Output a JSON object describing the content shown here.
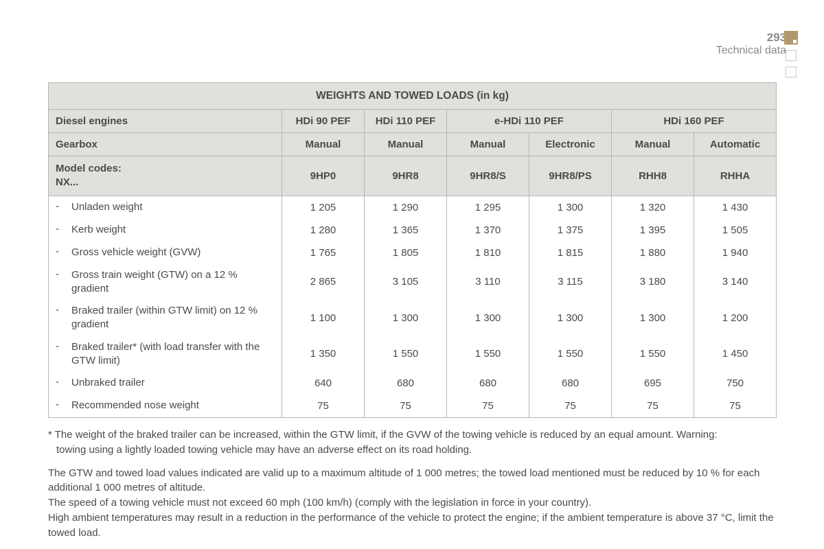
{
  "header": {
    "page_number": "293",
    "section": "Technical data"
  },
  "table": {
    "title": "WEIGHTS AND TOWED LOADS (in kg)",
    "row_engines_label": "Diesel engines",
    "engines": [
      "HDi 90 PEF",
      "HDi 110 PEF",
      "e-HDi 110 PEF",
      "HDi 160 PEF"
    ],
    "row_gearbox_label": "Gearbox",
    "gearboxes": [
      "Manual",
      "Manual",
      "Manual",
      "Electronic",
      "Manual",
      "Automatic"
    ],
    "row_model_label_line1": "Model codes:",
    "row_model_label_line2": "NX...",
    "model_codes": [
      "9HP0",
      "9HR8",
      "9HR8/S",
      "9HR8/PS",
      "RHH8",
      "RHHA"
    ],
    "rows": [
      {
        "label": "Unladen weight",
        "values": [
          "1 205",
          "1 290",
          "1 295",
          "1 300",
          "1 320",
          "1 430"
        ]
      },
      {
        "label": "Kerb weight",
        "values": [
          "1 280",
          "1 365",
          "1 370",
          "1 375",
          "1 395",
          "1 505"
        ]
      },
      {
        "label": "Gross vehicle weight (GVW)",
        "values": [
          "1 765",
          "1 805",
          "1 810",
          "1 815",
          "1 880",
          "1 940"
        ]
      },
      {
        "label": "Gross train weight (GTW) on a 12 % gradient",
        "values": [
          "2 865",
          "3 105",
          "3 110",
          "3 115",
          "3 180",
          "3 140"
        ]
      },
      {
        "label": "Braked trailer (within GTW limit) on 12 % gradient",
        "values": [
          "1 100",
          "1 300",
          "1 300",
          "1 300",
          "1 300",
          "1 200"
        ]
      },
      {
        "label": "Braked trailer* (with load transfer with the GTW limit)",
        "values": [
          "1 350",
          "1 550",
          "1 550",
          "1 550",
          "1 550",
          "1 450"
        ]
      },
      {
        "label": "Unbraked trailer",
        "values": [
          "640",
          "680",
          "680",
          "680",
          "695",
          "750"
        ]
      },
      {
        "label": "Recommended nose weight",
        "values": [
          "75",
          "75",
          "75",
          "75",
          "75",
          "75"
        ]
      }
    ]
  },
  "notes": {
    "n1a": "* The weight of the braked trailer can be increased, within the GTW limit, if the GVW of the towing vehicle is reduced by an equal amount. Warning:",
    "n1b": "towing using a lightly loaded towing vehicle may have an adverse effect on its road holding.",
    "n2": "The GTW and towed load values indicated are valid up to a maximum altitude of 1 000 metres; the towed load mentioned must be reduced by 10 % for each additional 1 000 metres of altitude.",
    "n3": "The speed of a towing vehicle must not exceed 60 mph (100 km/h) (comply with the legislation in force in your country).",
    "n4": "High ambient temperatures may result in a reduction in the performance of the vehicle to protect the engine; if the ambient temperature is above 37 °C, limit the towed load."
  },
  "colors": {
    "header_bg": "#e0e0dd",
    "border": "#b5b5b2",
    "text": "#4a4a4a",
    "accent": "#b09a6b",
    "muted": "#8a8a87"
  }
}
